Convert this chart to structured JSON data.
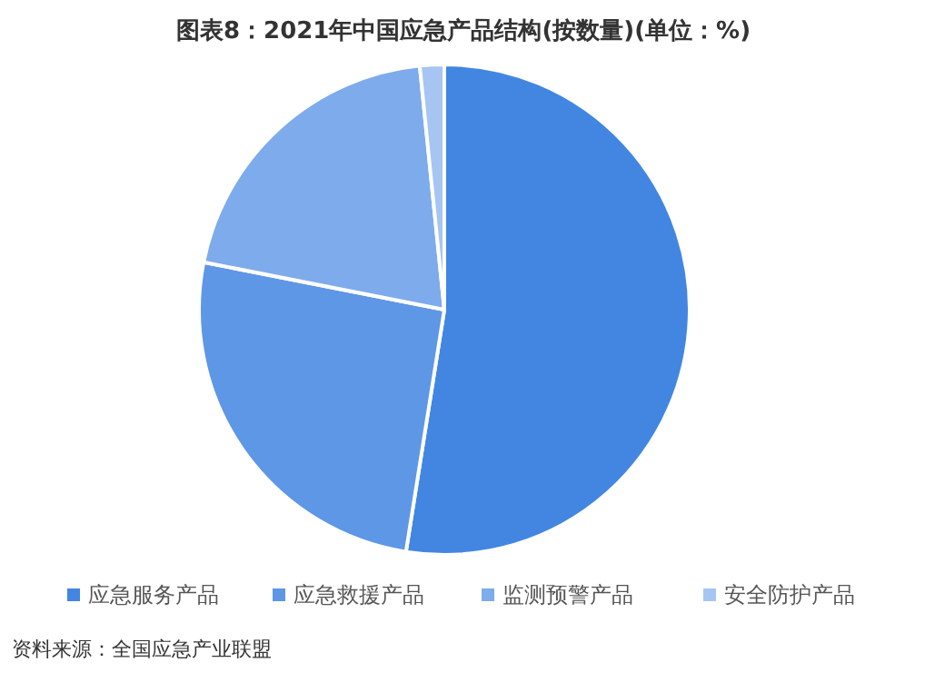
{
  "chart_data": {
    "type": "pie",
    "title": "图表8：2021年中国应急产品结构(按数量)(单位：%)",
    "categories": [
      "应急服务产品",
      "应急救援产品",
      "监测预警产品",
      "安全防护产品"
    ],
    "values": [
      52.5,
      25.6,
      20.3,
      1.6
    ],
    "colors": [
      "#4286e2",
      "#5e97e5",
      "#7eabeb",
      "#a6c5f2"
    ],
    "legend": "bottom",
    "annotations": [
      "资料来源：全国应急产业联盟"
    ]
  }
}
